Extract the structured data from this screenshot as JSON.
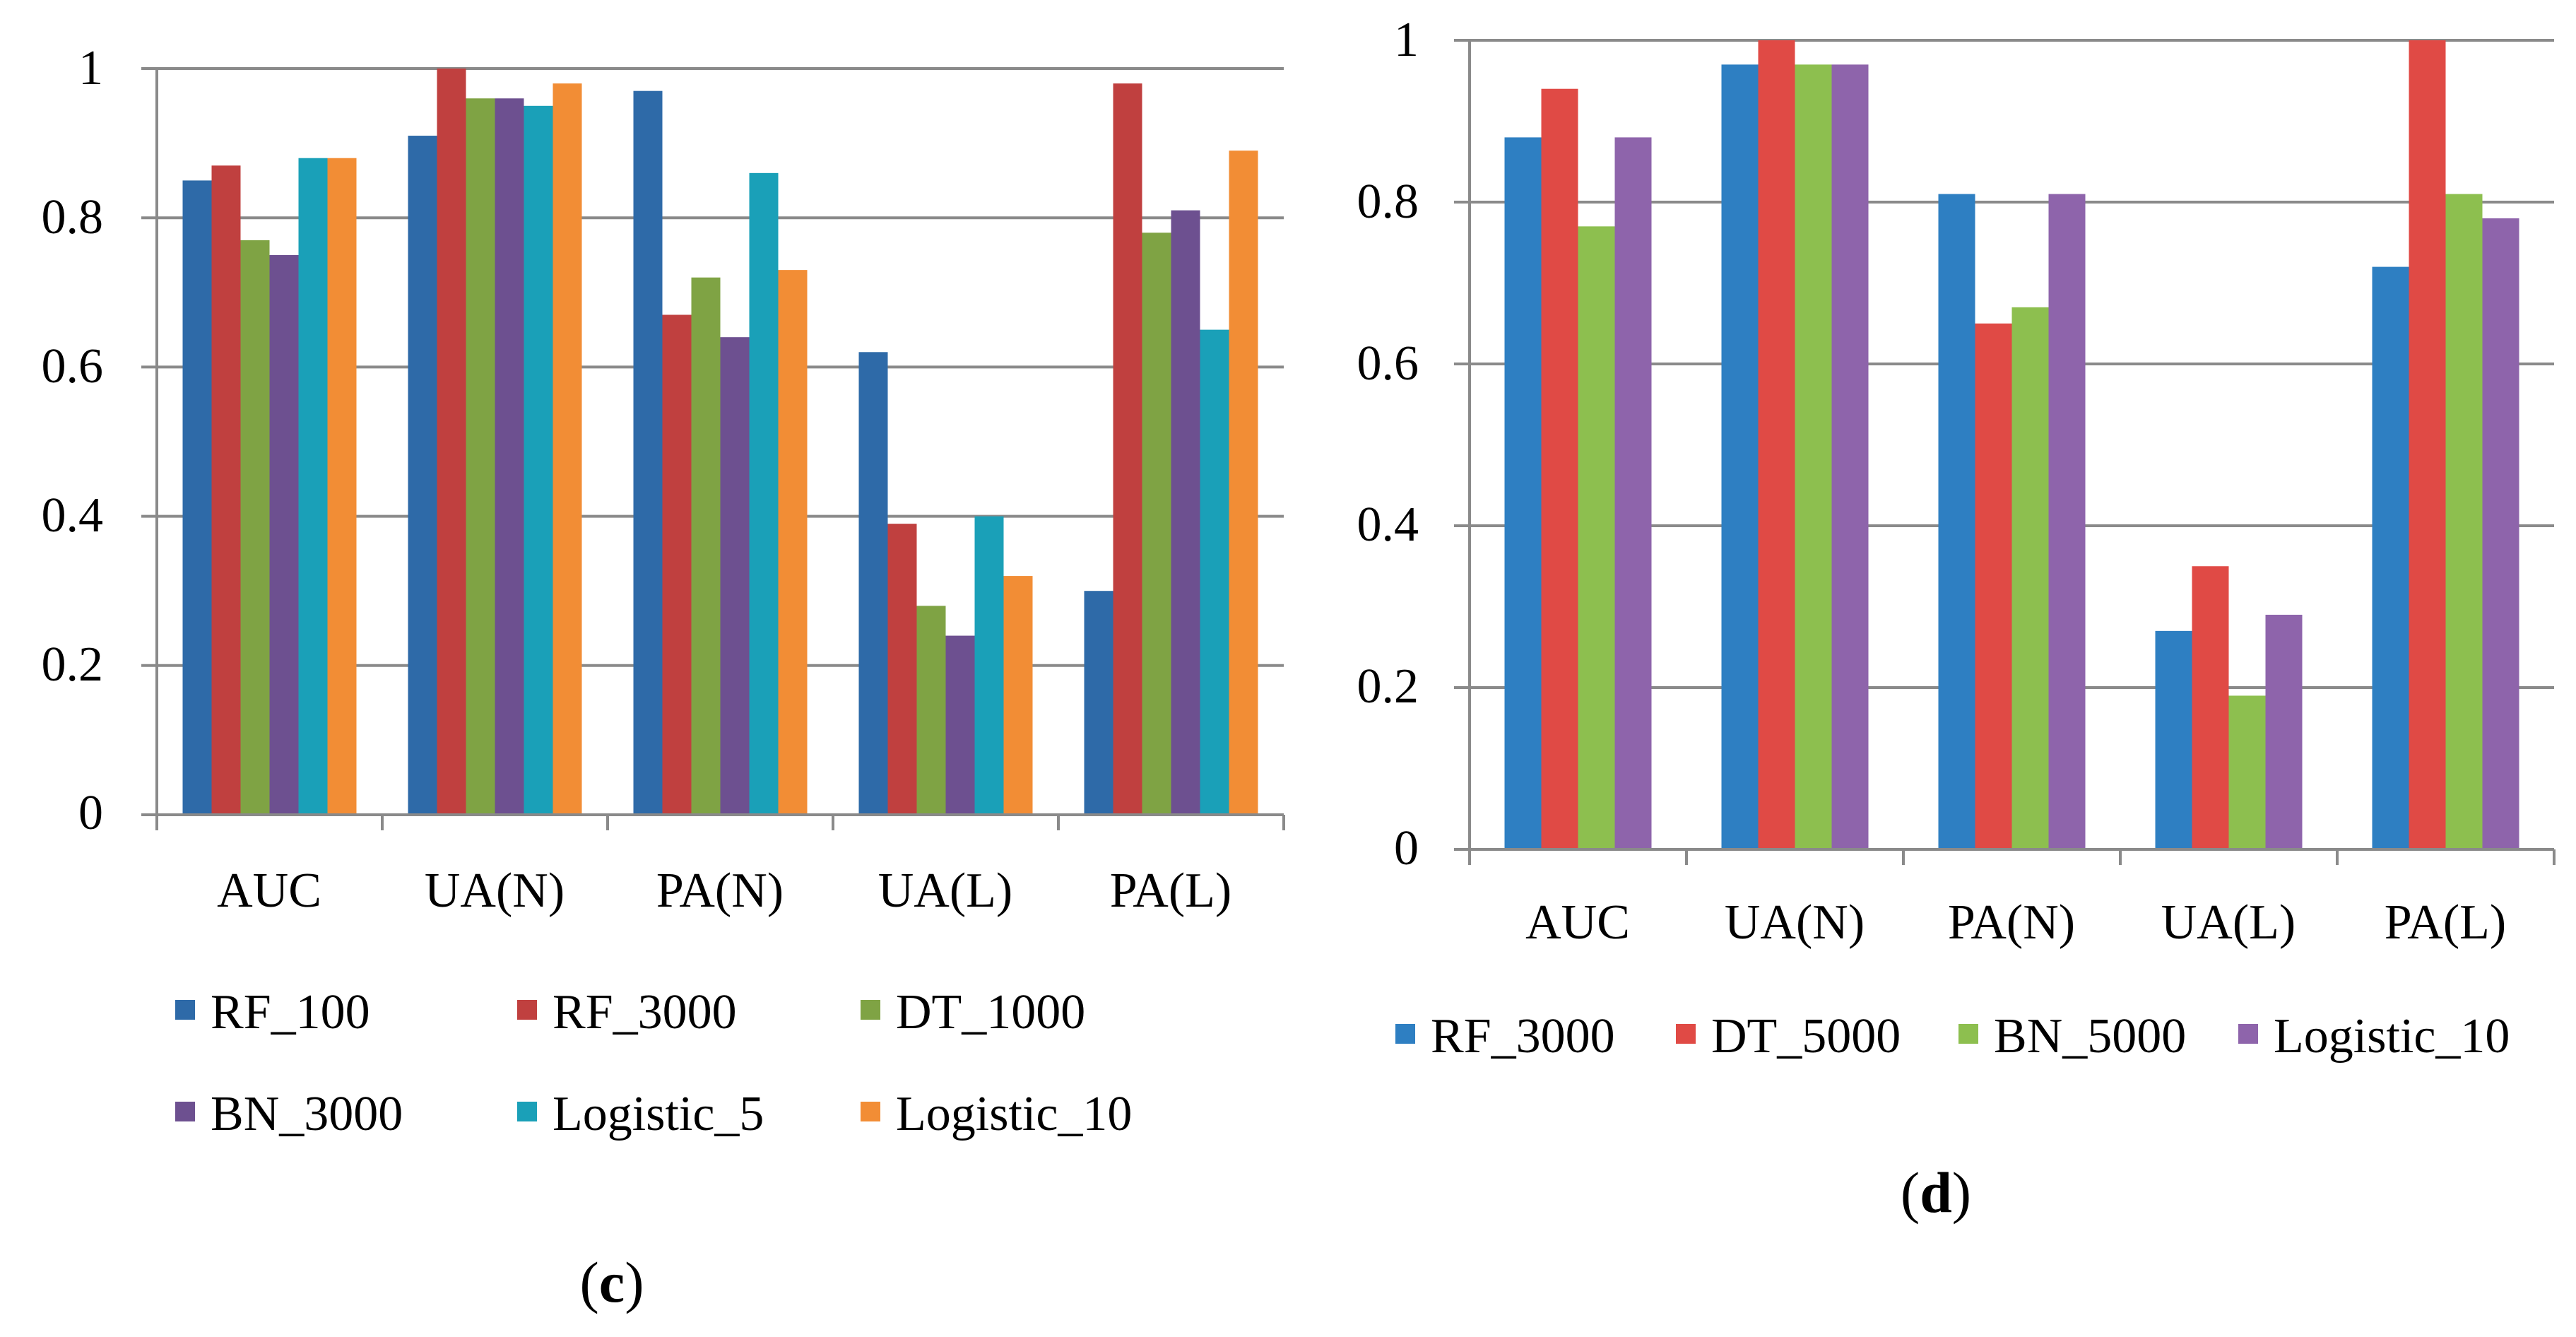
{
  "chart_data": [
    {
      "id": "c",
      "type": "bar",
      "panel_label": "c",
      "ylim": [
        0,
        1
      ],
      "yticks": [
        "0",
        "0.2",
        "0.4",
        "0.6",
        "0.8",
        "1"
      ],
      "categories": [
        "AUC",
        "UA(N)",
        "PA(N)",
        "UA(L)",
        "PA(L)"
      ],
      "grid": true,
      "legend_position": "bottom",
      "series": [
        {
          "name": "RF_100",
          "color": "#2e6aa8",
          "values": [
            0.85,
            0.91,
            0.97,
            0.62,
            0.3
          ]
        },
        {
          "name": "RF_3000",
          "color": "#c0403f",
          "values": [
            0.87,
            1.0,
            0.67,
            0.39,
            0.98
          ]
        },
        {
          "name": "DT_1000",
          "color": "#7fa344",
          "values": [
            0.77,
            0.96,
            0.72,
            0.28,
            0.78
          ]
        },
        {
          "name": "BN_3000",
          "color": "#6d5090",
          "values": [
            0.75,
            0.96,
            0.64,
            0.24,
            0.81
          ]
        },
        {
          "name": "Logistic_5",
          "color": "#1aa0b8",
          "values": [
            0.88,
            0.95,
            0.86,
            0.4,
            0.65
          ]
        },
        {
          "name": "Logistic_10",
          "color": "#f28d35",
          "values": [
            0.88,
            0.98,
            0.73,
            0.32,
            0.89
          ]
        }
      ]
    },
    {
      "id": "d",
      "type": "bar",
      "panel_label": "d",
      "ylim": [
        0,
        1
      ],
      "yticks": [
        "0",
        "0.2",
        "0.4",
        "0.6",
        "0.8",
        "1"
      ],
      "categories": [
        "AUC",
        "UA(N)",
        "PA(N)",
        "UA(L)",
        "PA(L)"
      ],
      "grid": true,
      "legend_position": "bottom",
      "series": [
        {
          "name": "RF_3000",
          "color": "#2e7fc2",
          "values": [
            0.88,
            0.97,
            0.81,
            0.27,
            0.72
          ]
        },
        {
          "name": "DT_5000",
          "color": "#e04a45",
          "values": [
            0.94,
            1.0,
            0.65,
            0.35,
            1.0
          ]
        },
        {
          "name": "BN_5000",
          "color": "#8dbf4f",
          "values": [
            0.77,
            0.97,
            0.67,
            0.19,
            0.81
          ]
        },
        {
          "name": "Logistic_10",
          "color": "#8e64ab",
          "values": [
            0.88,
            0.97,
            0.81,
            0.29,
            0.78
          ]
        }
      ]
    }
  ]
}
